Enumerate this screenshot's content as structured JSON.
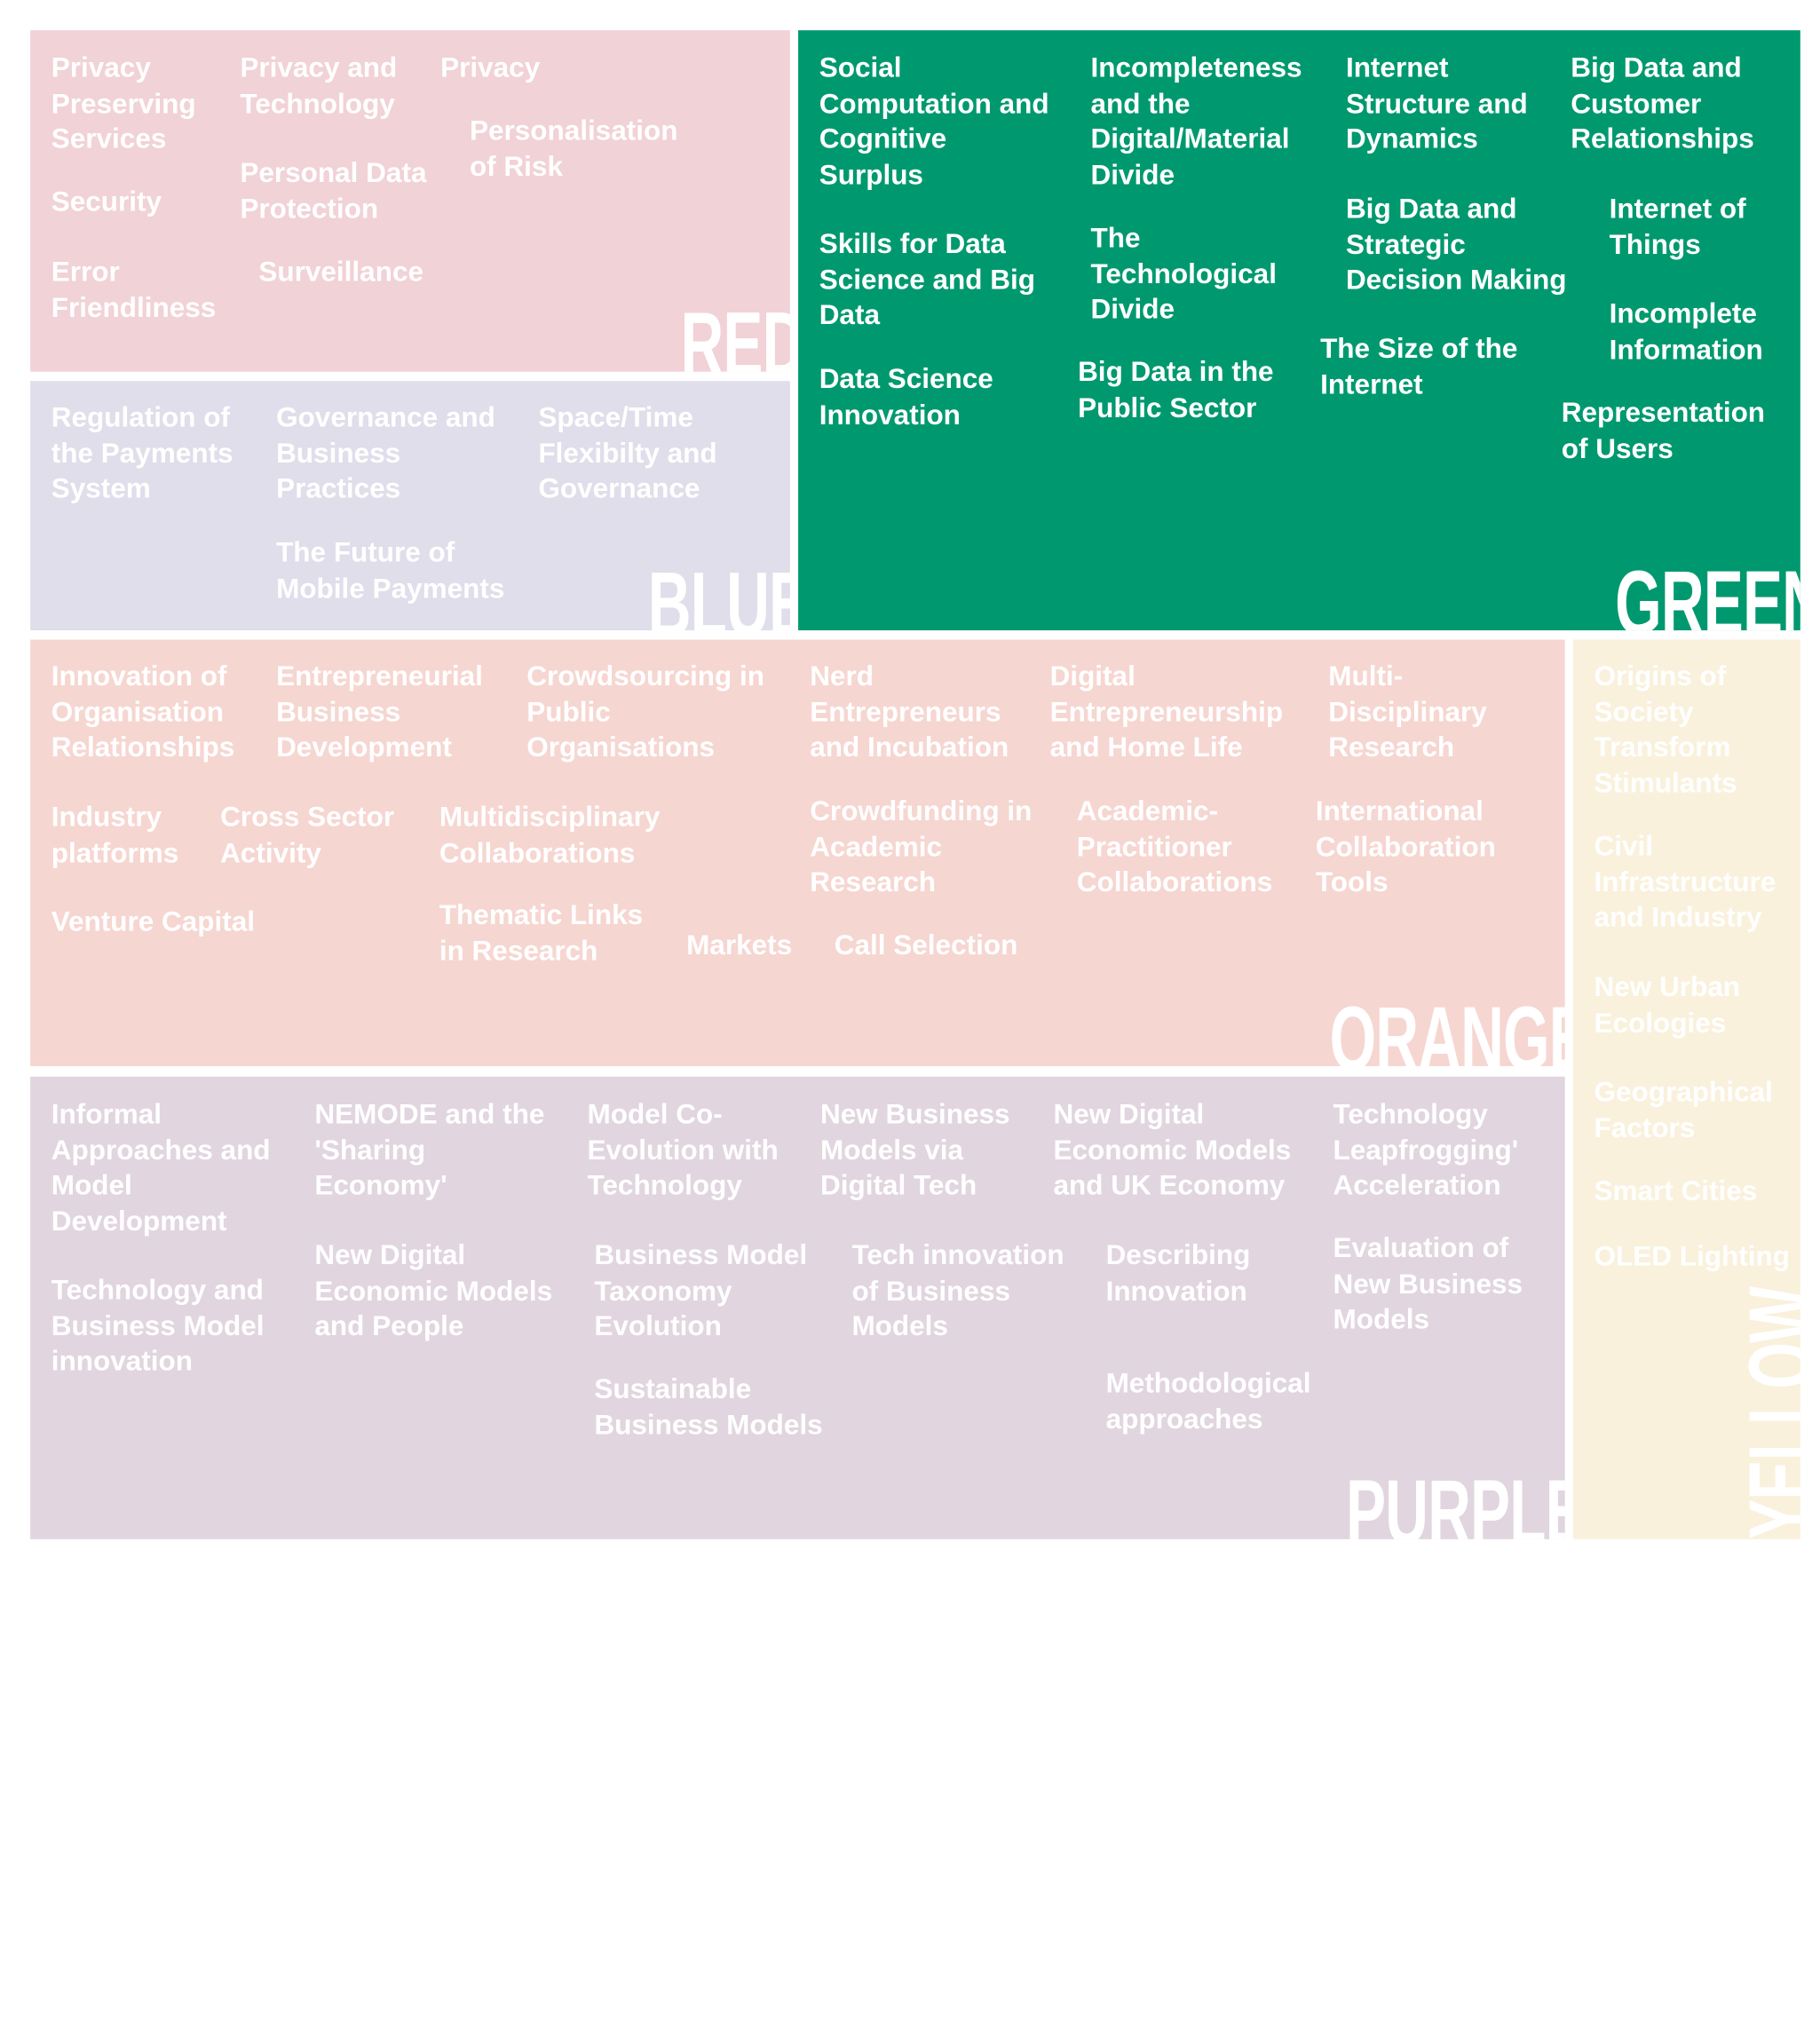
{
  "colors": {
    "red": "#f1d2d6",
    "blue": "#dfdeea",
    "green": "#00996f",
    "orange": "#f6d6d1",
    "purple": "#e1d5df",
    "yellow": "#f9f1dc",
    "light_text": "#ffffff",
    "green_text": "#ffffff"
  },
  "panels": {
    "red": {
      "title": "RED",
      "topics": [
        "Privacy\nPreserving\nServices",
        "Privacy and\nTechnology",
        "Privacy",
        "Personalisation\nof Risk",
        "Security",
        "Personal Data\nProtection",
        "Error\nFriendliness",
        "Surveillance"
      ]
    },
    "blue": {
      "title": "BLUE",
      "topics": [
        "Regulation of\nthe Payments\nSystem",
        "Governance and\nBusiness\nPractices",
        "Space/Time\nFlexibilty and\nGovernance",
        "The Future of\nMobile Payments"
      ]
    },
    "green": {
      "title": "GREEN",
      "topics": [
        "Social\nComputation and\nCognitive\nSurplus",
        "Incompleteness\nand the\nDigital/Material\nDivide",
        "Internet\nStructure and\nDynamics",
        "Big Data and\nCustomer\nRelationships",
        "Skills for Data\nScience and Big\nData",
        "The\nTechnological\nDivide",
        "Big Data and\nStrategic\nDecision Making",
        "Internet of\nThings",
        "Incomplete\nInformation",
        "The Size of the\nInternet",
        "Data Science\nInnovation",
        "Big Data in the\nPublic Sector",
        "Representation\nof Users"
      ]
    },
    "orange": {
      "title": "ORANGE",
      "topics": [
        "Innovation of\nOrganisation\nRelationships",
        "Entrepreneurial\nBusiness\nDevelopment",
        "Crowdsourcing in\nPublic\nOrganisations",
        "Nerd\nEntrepreneurs\nand Incubation",
        "Digital\nEntrepreneurship\nand Home Life",
        "Multi-\nDisciplinary\nResearch",
        "Industry\nplatforms",
        "Cross Sector\nActivity",
        "Multidisciplinary\nCollaborations",
        "Crowdfunding in\nAcademic\nResearch",
        "Academic-\nPractitioner\nCollaborations",
        "International\nCollaboration\nTools",
        "Venture Capital",
        "Thematic Links\nin Research",
        "Markets",
        "Call Selection"
      ]
    },
    "yellow": {
      "title": "YELLOW",
      "topics": [
        "Origins of\nSociety\nTransform\nStimulants",
        "Civil\nInfrastructure\nand Industry",
        "New Urban\nEcologies",
        "Geographical\nFactors",
        "Smart Cities",
        "OLED Lighting"
      ]
    },
    "purple": {
      "title": "PURPLE",
      "topics": [
        "Informal\nApproaches and\nModel\nDevelopment",
        "NEMODE and the\n'Sharing\nEconomy'",
        "Model Co-\nEvolution with\nTechnology",
        "New Business\nModels via\nDigital Tech",
        "New Digital\nEconomic Models\nand UK Economy",
        "Technology\nLeapfrogging'\nAcceleration",
        "New Digital\nEconomic Models\nand People",
        "Business Model\nTaxonomy\nEvolution",
        "Tech innovation\nof Business\nModels",
        "Describing\nInnovation",
        "Evaluation of\nNew Business\nModels",
        "Technology and\nBusiness Model\ninnovation",
        "Sustainable\nBusiness Models",
        "Methodological\napproaches"
      ]
    }
  }
}
